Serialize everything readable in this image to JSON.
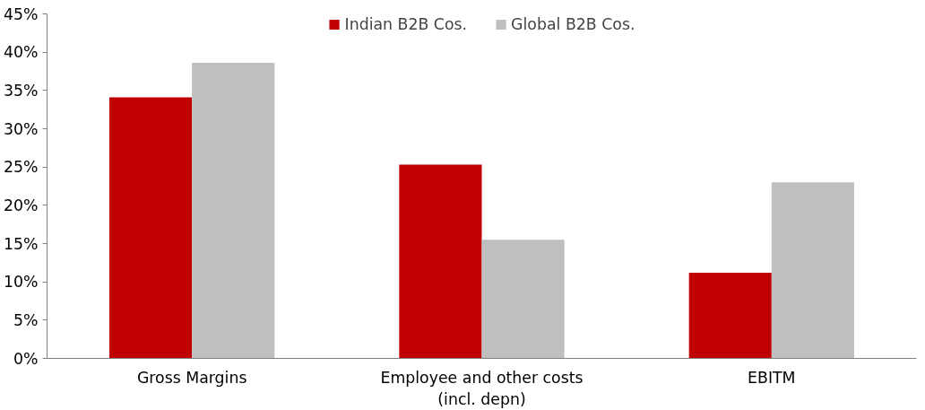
{
  "chart_data": {
    "type": "bar",
    "categories": [
      "Gross Margins",
      "Employee and other costs (incl. depn)",
      "EBITM"
    ],
    "series": [
      {
        "name": "Indian B2B Cos.",
        "color": "#c00000",
        "values": [
          34.1,
          25.3,
          11.2
        ]
      },
      {
        "name": "Global B2B Cos.",
        "color": "#bfbfbf",
        "values": [
          38.6,
          15.5,
          23.0
        ]
      }
    ],
    "ylim": [
      0,
      45
    ],
    "yticks": [
      {
        "value": 0,
        "label": "0%"
      },
      {
        "value": 5,
        "label": "5%"
      },
      {
        "value": 10,
        "label": "10%"
      },
      {
        "value": 15,
        "label": "15%"
      },
      {
        "value": 20,
        "label": "20%"
      },
      {
        "value": 25,
        "label": "25%"
      },
      {
        "value": 30,
        "label": "30%"
      },
      {
        "value": 35,
        "label": "35%"
      },
      {
        "value": 40,
        "label": "40%"
      },
      {
        "value": 45,
        "label": "45%"
      }
    ],
    "grid": false,
    "legend": "top"
  }
}
